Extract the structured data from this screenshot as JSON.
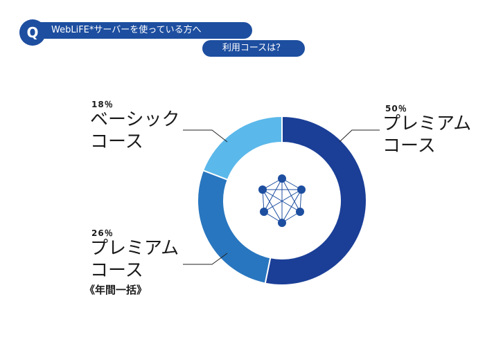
{
  "header": {
    "badge": "Q",
    "line1": "WebLiFE*サーバーを使っている方へ",
    "line2": "利用コースは？"
  },
  "colors": {
    "header_bg": "#1d4ea0",
    "premium": "#1b3f97",
    "premium_yearly": "#2876bf",
    "basic": "#5bb8ea",
    "network_icon": "#1d4ea0"
  },
  "icon": "network-graph-icon",
  "chart_data": {
    "type": "pie",
    "variant": "donut",
    "categories": [
      "プレミアムコース",
      "プレミアムコース《年間一括》",
      "ベーシックコース"
    ],
    "values": [
      50,
      26,
      18
    ],
    "unit": "%",
    "labels": [
      {
        "pct": "50％",
        "line1": "プレミアム",
        "line2": "コース",
        "note": ""
      },
      {
        "pct": "26％",
        "line1": "プレミアム",
        "line2": "コース",
        "note": "《年間一括》"
      },
      {
        "pct": "18％",
        "line1": "ベーシック",
        "line2": "コース",
        "note": ""
      }
    ],
    "legend": "none"
  }
}
